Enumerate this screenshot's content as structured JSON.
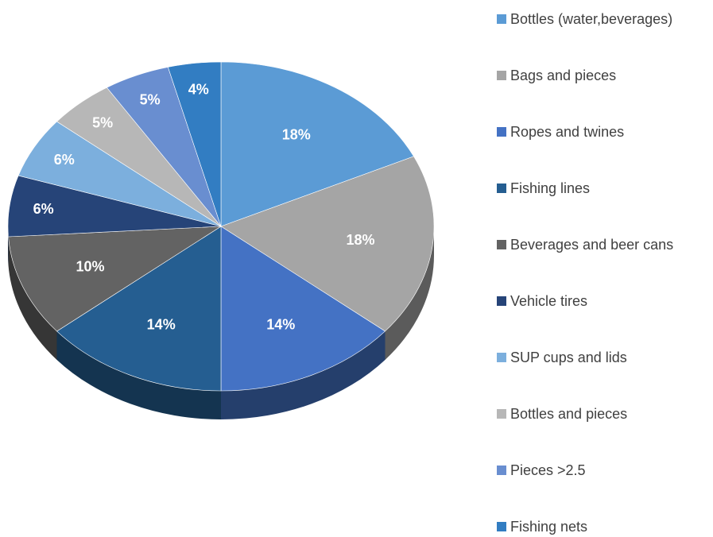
{
  "chart_data": {
    "type": "pie",
    "title": "",
    "legend_position": "right",
    "slices": [
      {
        "name": "Bottles (water,beverages)",
        "value": 18,
        "label": "18%",
        "color": "#5b9bd5"
      },
      {
        "name": "Bags and pieces",
        "value": 18,
        "label": "18%",
        "color": "#a5a5a5"
      },
      {
        "name": "Ropes and twines",
        "value": 14,
        "label": "14%",
        "color": "#4472c4"
      },
      {
        "name": "Fishing lines",
        "value": 14,
        "label": "14%",
        "color": "#255e91"
      },
      {
        "name": "Beverages and beer cans",
        "value": 10,
        "label": "10%",
        "color": "#636363"
      },
      {
        "name": "Vehicle tires",
        "value": 6,
        "label": "6%",
        "color": "#264478"
      },
      {
        "name": "SUP cups and lids",
        "value": 6,
        "label": "6%",
        "color": "#7cafdd"
      },
      {
        "name": "Bottles and pieces",
        "value": 5,
        "label": "5%",
        "color": "#b7b7b7"
      },
      {
        "name": "Pieces >2.5",
        "value": 5,
        "label": "5%",
        "color": "#698ed0"
      },
      {
        "name": "Fishing nets",
        "value": 4,
        "label": "4%",
        "color": "#327dc2"
      }
    ]
  }
}
